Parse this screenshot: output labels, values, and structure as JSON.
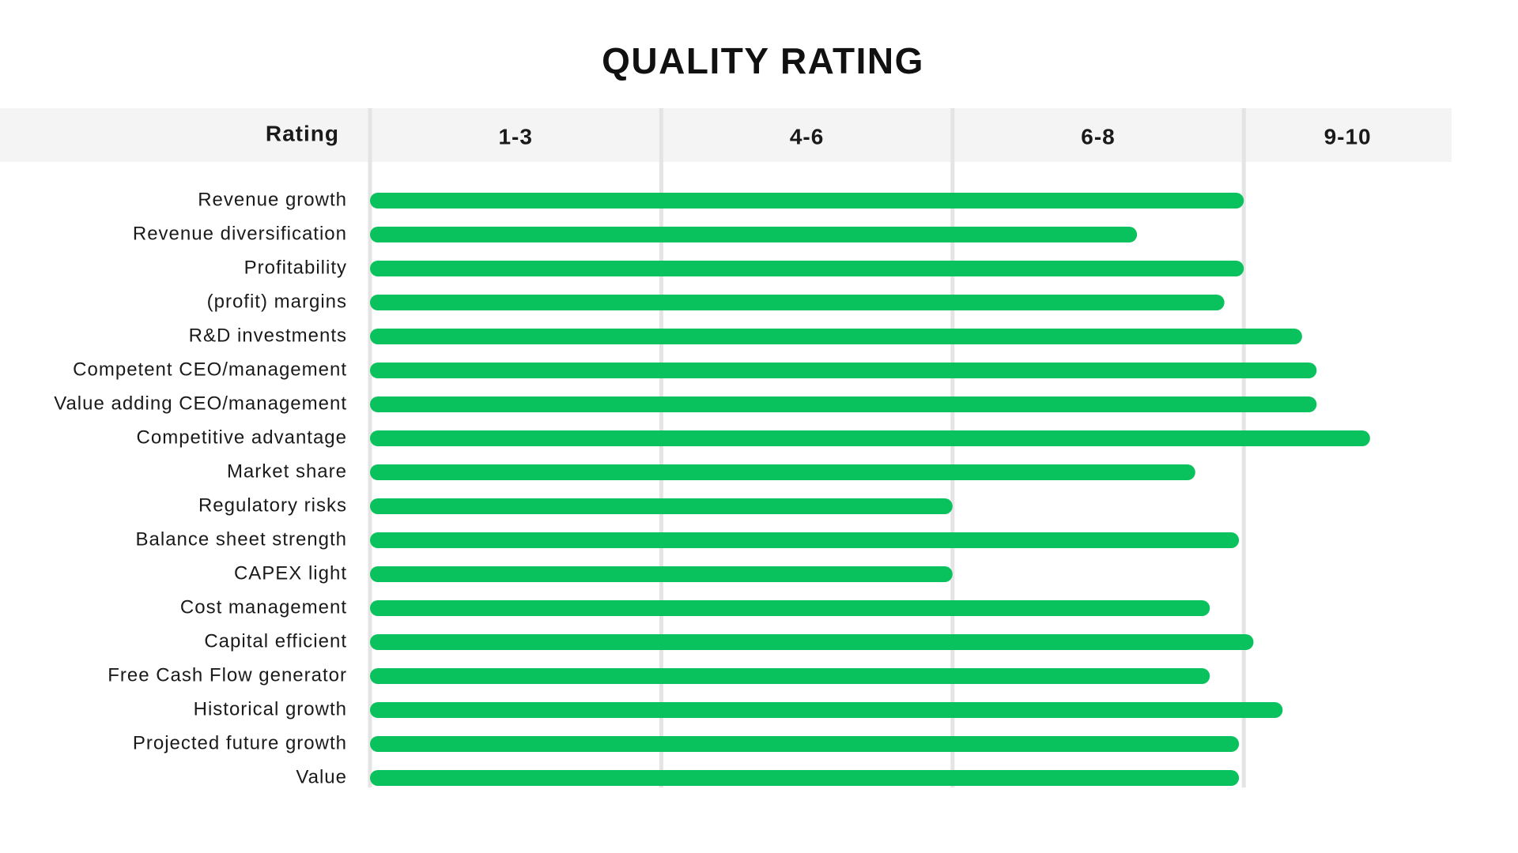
{
  "chart_data": {
    "type": "bar",
    "orientation": "horizontal",
    "title": "QUALITY RATING",
    "y_label": "Rating",
    "categories": [
      "Revenue growth",
      "Revenue diversification",
      "Profitability",
      "(profit) margins",
      "R&D investments",
      "Competent CEO/management",
      "Value adding CEO/management",
      "Competitive advantage",
      "Market share",
      "Regulatory risks",
      "Balance sheet strength",
      "CAPEX light",
      "Cost management",
      "Capital efficient",
      "Free Cash Flow generator",
      "Historical growth",
      "Projected future growth",
      "Value"
    ],
    "values": [
      9.0,
      7.9,
      9.0,
      8.8,
      9.6,
      9.75,
      9.75,
      10.3,
      8.5,
      6.0,
      8.95,
      6.0,
      8.65,
      9.1,
      8.65,
      9.4,
      8.95,
      8.95
    ],
    "color": "#09c15d",
    "xlim": [
      0,
      11.14
    ],
    "xticks": [
      {
        "value": 0,
        "label": "1-3"
      },
      {
        "value": 3,
        "label": "4-6"
      },
      {
        "value": 6,
        "label": "6-8"
      },
      {
        "value": 9,
        "label": "9-10"
      }
    ],
    "grid": true
  }
}
